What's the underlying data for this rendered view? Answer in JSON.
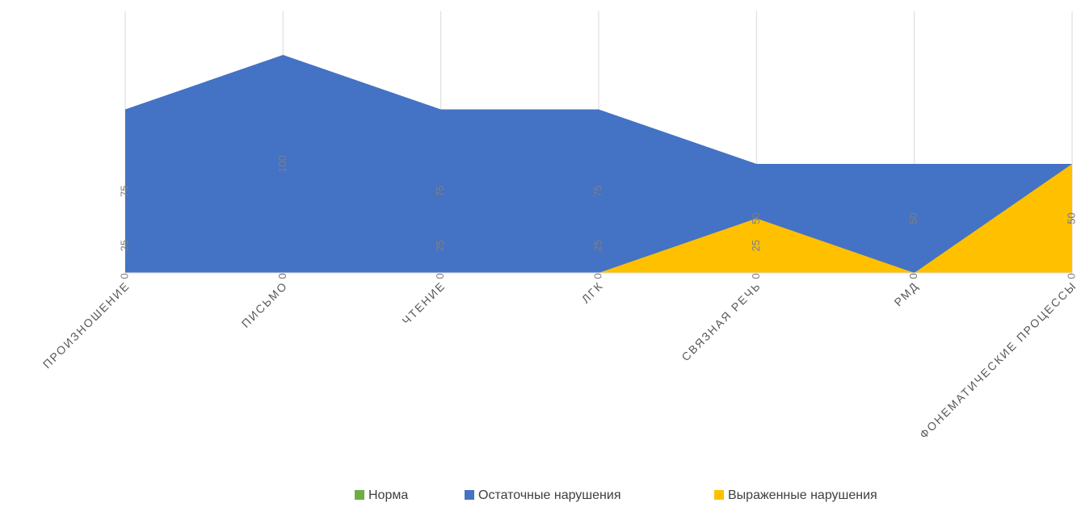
{
  "chart_data": {
    "type": "area",
    "categories": [
      "ПРОИЗНОШЕНИЕ",
      "ПИСЬМО",
      "ЧТЕНИЕ",
      "ЛГК",
      "СВЯЗНАЯ РЕЧЬ",
      "РМД",
      "ФОНЕМАТИЧЕСКИЕ ПРОЦЕССЫ"
    ],
    "series": [
      {
        "name": "Норма",
        "color": "#70ad47",
        "values": [
          25,
          0,
          25,
          25,
          0,
          0,
          0
        ]
      },
      {
        "name": "Остаточные нарушения",
        "color": "#4472c4",
        "values": [
          75,
          100,
          75,
          75,
          50,
          50,
          50
        ]
      },
      {
        "name": "Выраженные нарушения",
        "color": "#ffc000",
        "values": [
          0,
          0,
          0,
          0,
          25,
          0,
          50
        ]
      }
    ],
    "ylim": [
      0,
      100
    ],
    "grid": true,
    "legend": "bottom"
  }
}
